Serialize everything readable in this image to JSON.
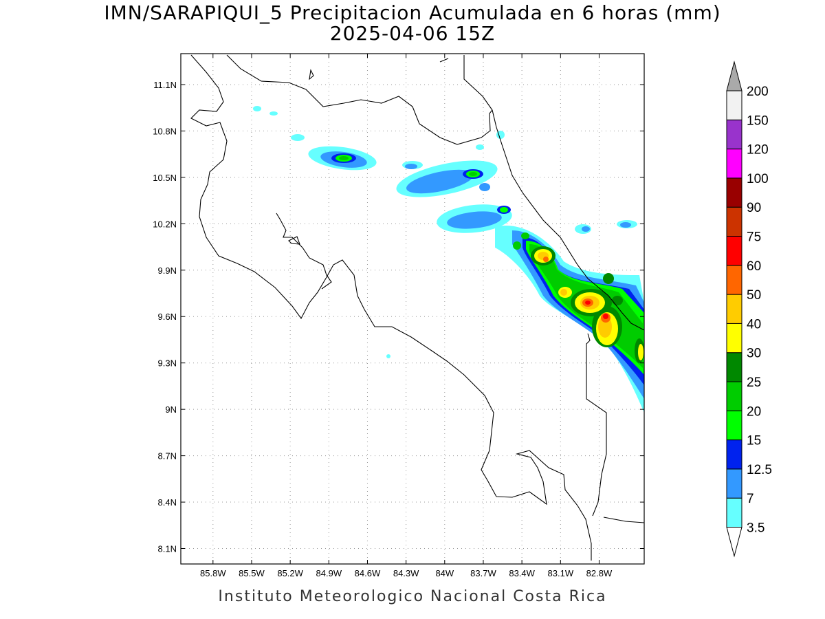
{
  "title": {
    "line1": "IMN/SARAPIQUI_5 Precipitacion Acumulada en 6 horas (mm)",
    "line2": "2025-04-06 15Z"
  },
  "footer": "Instituto Meteorologico Nacional Costa Rica",
  "map": {
    "lon_range": [
      -86.05,
      -82.45
    ],
    "lat_range": [
      8.0,
      11.3
    ],
    "lon_ticks": [
      "85.8W",
      "85.5W",
      "85.2W",
      "84.9W",
      "84.6W",
      "84.3W",
      "84W",
      "83.7W",
      "83.4W",
      "83.1W",
      "82.8W"
    ],
    "lon_tick_values": [
      -85.8,
      -85.5,
      -85.2,
      -84.9,
      -84.6,
      -84.3,
      -84.0,
      -83.7,
      -83.4,
      -83.1,
      -82.8
    ],
    "lat_ticks": [
      "11.1N",
      "10.8N",
      "10.5N",
      "10.2N",
      "9.9N",
      "9.6N",
      "9.3N",
      "9N",
      "8.7N",
      "8.4N",
      "8.1N"
    ],
    "lat_tick_values": [
      11.1,
      10.8,
      10.5,
      10.2,
      9.9,
      9.6,
      9.3,
      9.0,
      8.7,
      8.4,
      8.1
    ],
    "grid": "dotted"
  },
  "colorbar": {
    "labels": [
      "3.5",
      "7",
      "12.5",
      "15",
      "20",
      "25",
      "30",
      "40",
      "50",
      "60",
      "75",
      "90",
      "100",
      "120",
      "150",
      "200"
    ],
    "colors": [
      "#66ffff",
      "#3399ff",
      "#0022ee",
      "#00ff00",
      "#00cc00",
      "#008800",
      "#ffff00",
      "#ffcc00",
      "#ff6600",
      "#ff0000",
      "#cc3300",
      "#990000",
      "#ff00ff",
      "#9933cc",
      "#f2f2f2",
      "#aaaaaa"
    ]
  },
  "precip_cells": [
    {
      "lon": -84.78,
      "lat": 10.62,
      "level": 4
    },
    {
      "lon": -83.81,
      "lat": 10.54,
      "level": 4
    },
    {
      "lon": -84.05,
      "lat": 10.46,
      "level": 2
    },
    {
      "lon": -83.59,
      "lat": 10.29,
      "level": 4
    },
    {
      "lon": -83.69,
      "lat": 10.2,
      "level": 2
    },
    {
      "lon": -83.28,
      "lat": 10.02,
      "level": 8
    },
    {
      "lon": -82.95,
      "lat": 9.72,
      "level": 9
    },
    {
      "lon": -82.78,
      "lat": 9.61,
      "level": 10
    },
    {
      "lon": -82.86,
      "lat": 9.73,
      "level": 7
    },
    {
      "lon": -82.73,
      "lat": 9.52,
      "level": 8
    },
    {
      "lon": -82.5,
      "lat": 9.38,
      "level": 7
    }
  ]
}
